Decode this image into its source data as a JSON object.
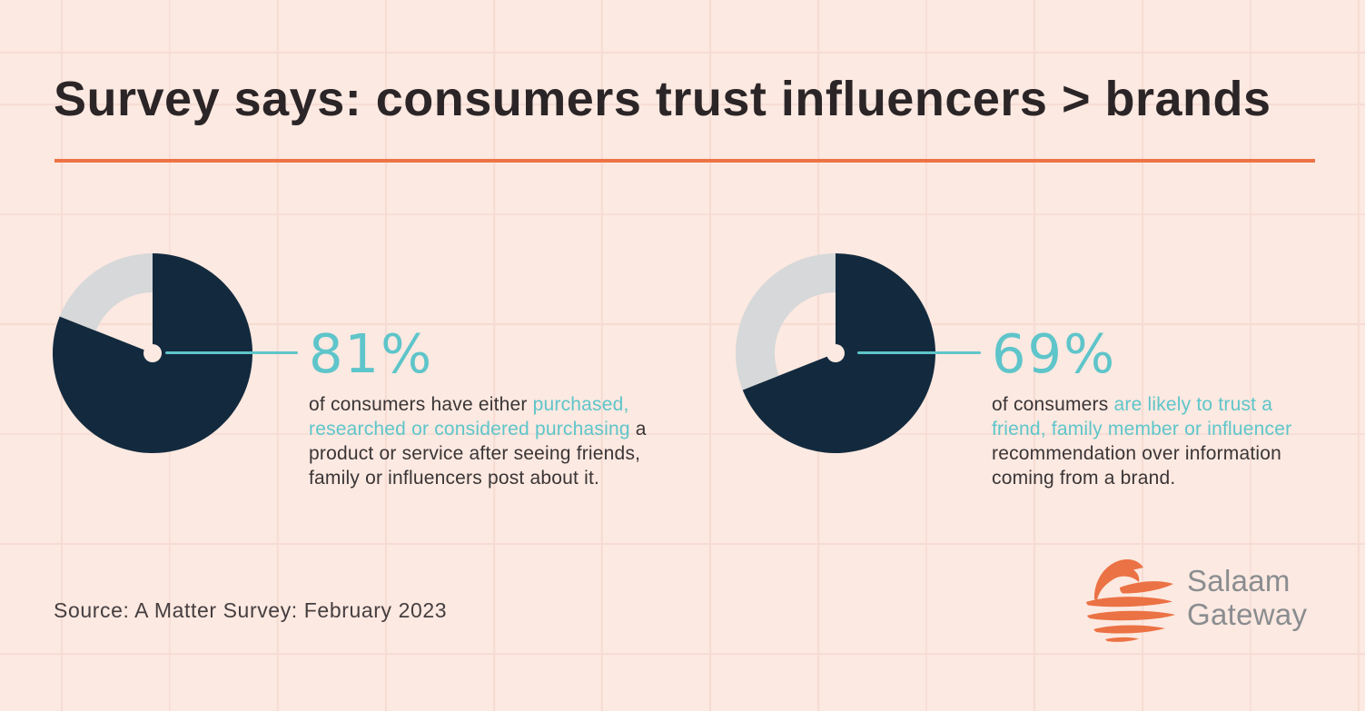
{
  "title": "Survey says: consumers trust influencers > brands",
  "source": "Source: A Matter Survey: February 2023",
  "logo": {
    "line1": "Salaam",
    "line2": "Gateway"
  },
  "colors": {
    "background": "#fce9e1",
    "grid_line": "#f6dcd3",
    "accent_orange": "#ed7345",
    "navy": "#132a3e",
    "slice_gray": "#d6d8d9",
    "teal": "#5ec5ca",
    "title_text": "#2b2527",
    "body_text": "#3a3536",
    "logo_gray": "#8a8d90"
  },
  "chart_data": [
    {
      "type": "pie",
      "display_label": "81%",
      "percent": 81,
      "direction": "clockwise-from-top",
      "donut_hole": true,
      "slices": [
        {
          "label": "consumers who purchased, researched or considered purchasing",
          "value": 81,
          "color": "#132a3e"
        },
        {
          "label": "other consumers",
          "value": 19,
          "color": "#d6d8d9"
        }
      ]
    },
    {
      "type": "pie",
      "display_label": "69%",
      "percent": 69,
      "direction": "clockwise-from-top",
      "donut_hole": true,
      "slices": [
        {
          "label": "consumers likely to trust friend, family member or influencer recommendation",
          "value": 69,
          "color": "#132a3e"
        },
        {
          "label": "other consumers",
          "value": 31,
          "color": "#d6d8d9"
        }
      ]
    }
  ],
  "stats": [
    {
      "parts": {
        "pre": "of consumers have either ",
        "highlight": "purchased, researched or considered purchasing",
        "post": " a product or service after seeing friends, family or influencers post about it."
      }
    },
    {
      "parts": {
        "pre": "of consumers ",
        "highlight": "are likely to trust a friend, family member or influencer",
        "post": " recommendation over information coming from a brand."
      }
    }
  ]
}
